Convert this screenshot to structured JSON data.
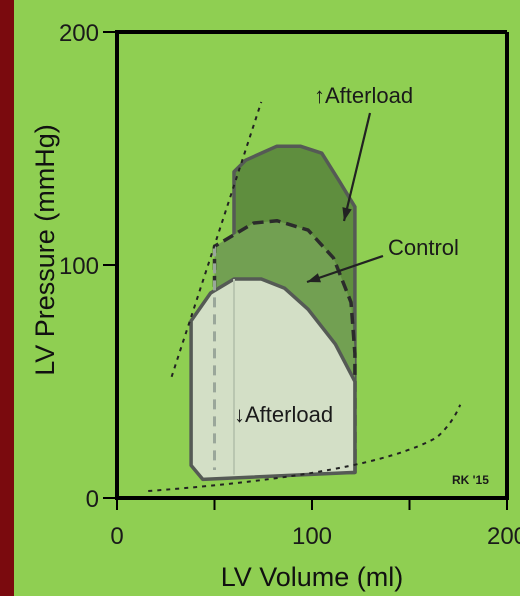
{
  "chart_data": {
    "type": "pv-loop",
    "xlabel": "LV Volume (ml)",
    "ylabel": "LV Pressure (mmHg)",
    "xlim": [
      0,
      200
    ],
    "ylim": [
      0,
      200
    ],
    "x_ticks": [
      {
        "value": 0,
        "label": "0"
      },
      {
        "value": 50,
        "label": ""
      },
      {
        "value": 100,
        "label": "100"
      },
      {
        "value": 150,
        "label": ""
      },
      {
        "value": 200,
        "label": "200"
      }
    ],
    "y_ticks": [
      {
        "value": 0,
        "label": "0"
      },
      {
        "value": 100,
        "label": "100"
      },
      {
        "value": 200,
        "label": "200"
      }
    ],
    "loops": [
      {
        "name": "↑Afterload",
        "fill": "#5f8e3e",
        "points": [
          [
            60,
            10
          ],
          [
            122,
            11
          ],
          [
            122,
            125
          ],
          [
            114,
            136
          ],
          [
            105,
            148
          ],
          [
            94,
            151
          ],
          [
            82,
            151
          ],
          [
            66,
            145
          ],
          [
            60,
            140
          ],
          [
            60,
            10
          ]
        ]
      },
      {
        "name": "Control",
        "fill": "#72a052",
        "dashed": true,
        "points": [
          [
            50,
            12
          ],
          [
            122,
            11
          ],
          [
            122,
            62
          ],
          [
            120,
            84
          ],
          [
            111,
            103
          ],
          [
            98,
            115
          ],
          [
            82,
            119
          ],
          [
            70,
            118
          ],
          [
            50,
            108
          ],
          [
            50,
            12
          ]
        ]
      },
      {
        "name": "↓Afterload",
        "fill": "#d3dfc6",
        "points": [
          [
            44,
            8
          ],
          [
            122,
            11
          ],
          [
            122,
            50
          ],
          [
            112,
            66
          ],
          [
            98,
            81
          ],
          [
            86,
            90
          ],
          [
            74,
            94
          ],
          [
            60,
            94
          ],
          [
            48,
            88
          ],
          [
            38,
            76
          ],
          [
            38,
            14
          ],
          [
            44,
            8
          ]
        ]
      }
    ],
    "annotations": {
      "increased": "↑Afterload",
      "control": "Control",
      "decreased": "↓Afterload",
      "credit": "RK '15"
    },
    "colors": {
      "background": "#8fcf52",
      "frame": "#7a0a0e"
    }
  }
}
